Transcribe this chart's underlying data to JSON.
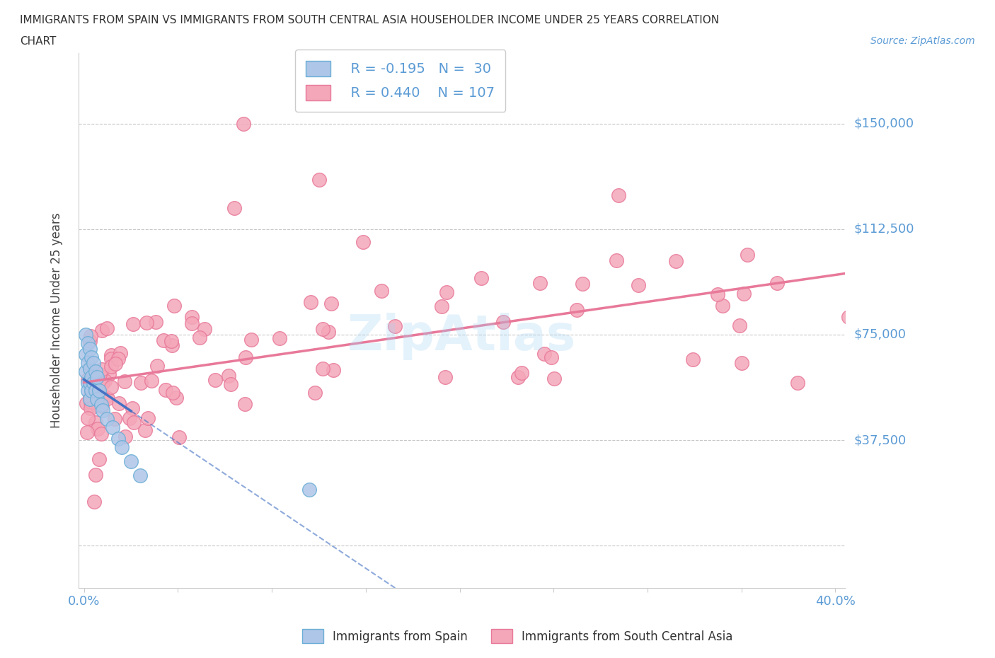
{
  "title_line1": "IMMIGRANTS FROM SPAIN VS IMMIGRANTS FROM SOUTH CENTRAL ASIA HOUSEHOLDER INCOME UNDER 25 YEARS CORRELATION",
  "title_line2": "CHART",
  "source_text": "Source: ZipAtlas.com",
  "ylabel": "Householder Income Under 25 years",
  "xlim": [
    -0.003,
    0.405
  ],
  "ylim": [
    -15000,
    175000
  ],
  "ytick_vals": [
    0,
    37500,
    75000,
    112500,
    150000
  ],
  "ytick_labels": [
    "",
    "$37,500",
    "$75,000",
    "$112,500",
    "$150,000"
  ],
  "xtick_vals": [
    0.0,
    0.05,
    0.1,
    0.15,
    0.2,
    0.25,
    0.3,
    0.35,
    0.4
  ],
  "xtick_labels": [
    "0.0%",
    "",
    "",
    "",
    "",
    "",
    "",
    "",
    "40.0%"
  ],
  "spain_color": "#aec6e8",
  "asia_color": "#f4a7b9",
  "spain_edge_color": "#6baed6",
  "asia_edge_color": "#e8799a",
  "spain_line_color": "#4472c4",
  "asia_line_color": "#e8799a",
  "axis_color": "#5b9bd5",
  "grid_color": "#c8c8c8",
  "background_color": "#ffffff",
  "watermark": "ZipAtlas",
  "legend_spain_R": "R = -0.195",
  "legend_spain_N": "N =  30",
  "legend_asia_R": "R = 0.440",
  "legend_asia_N": "N = 107"
}
